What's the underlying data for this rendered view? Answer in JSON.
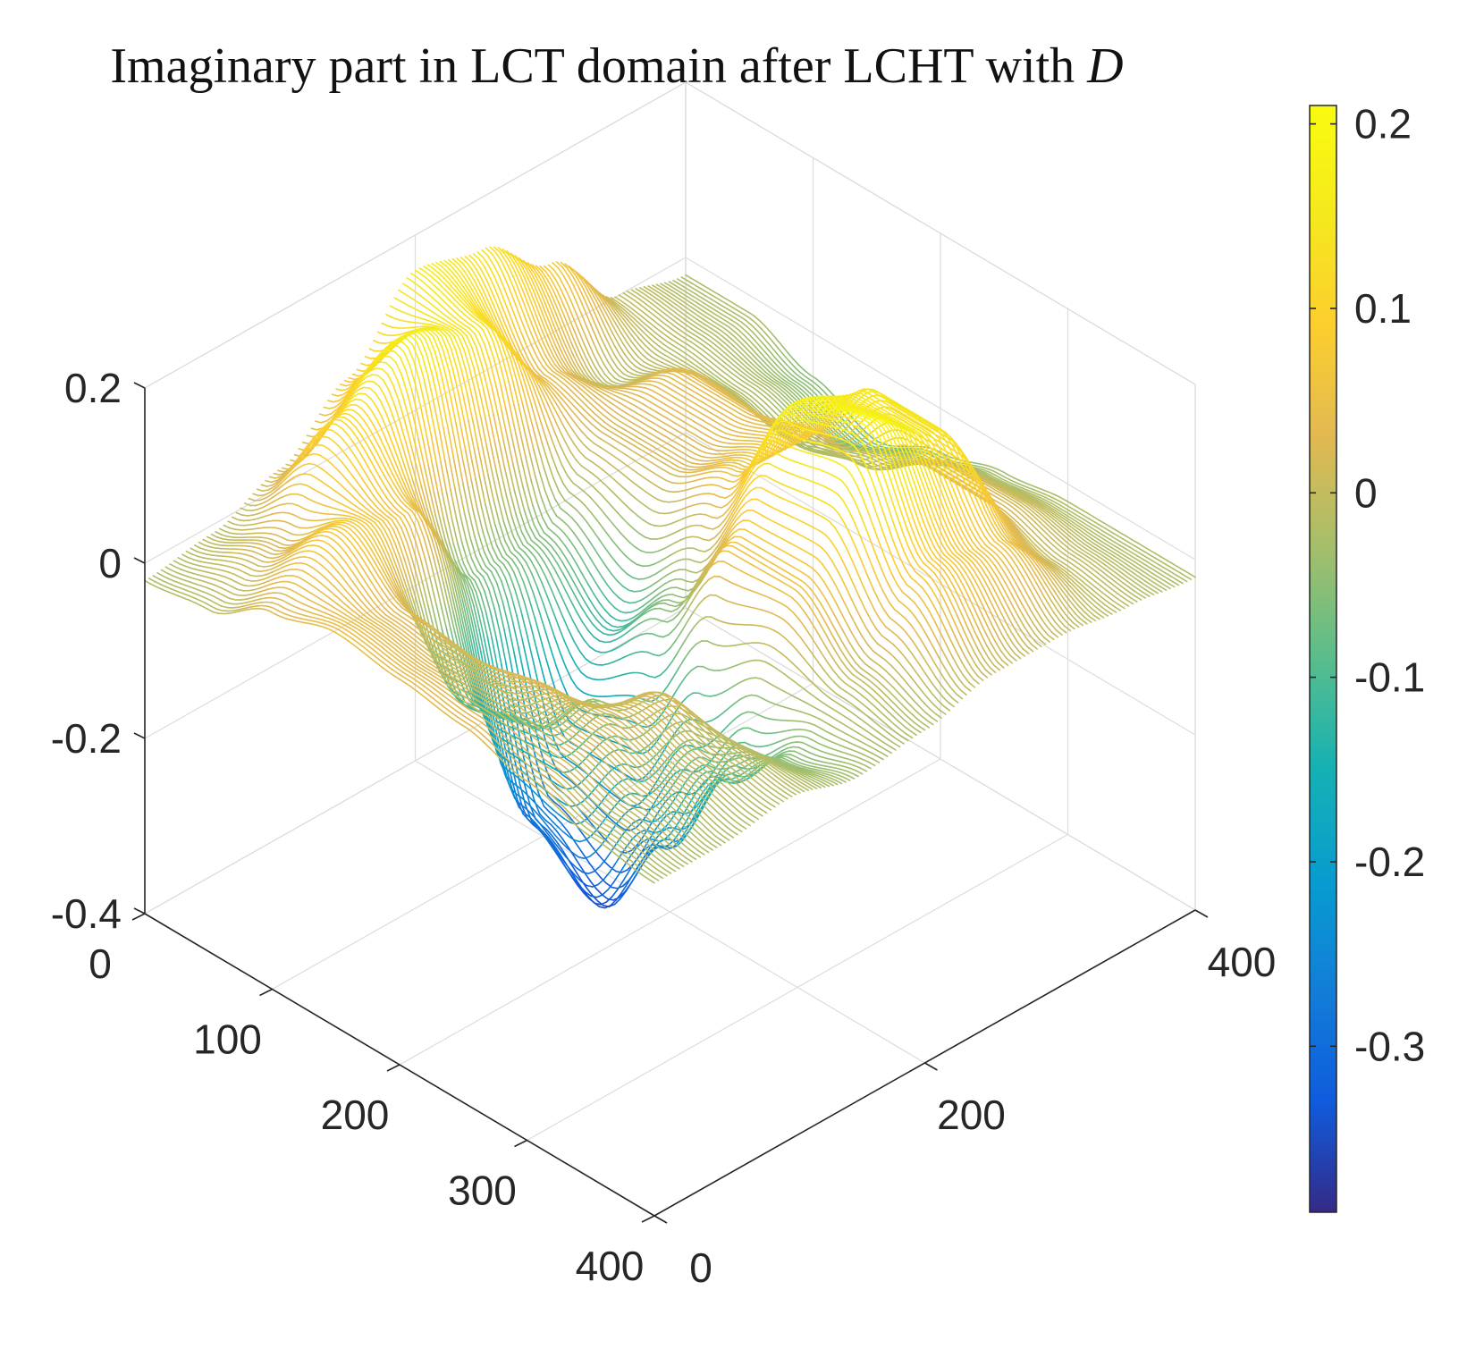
{
  "chart_data": {
    "type": "surface3d",
    "title": "Imaginary part in LCT domain after LCHT with ",
    "title_variable": "D",
    "xlabel": "",
    "ylabel": "",
    "zlabel": "",
    "x_axis": {
      "range": [
        0,
        400
      ],
      "ticks": [
        0,
        100,
        200,
        300,
        400
      ],
      "tick_labels": [
        "0",
        "100",
        "200",
        "300",
        "400"
      ]
    },
    "y_axis": {
      "range": [
        0,
        400
      ],
      "ticks": [
        0,
        200,
        400
      ],
      "tick_labels": [
        "0",
        "200",
        "400"
      ]
    },
    "z_axis": {
      "range": [
        -0.4,
        0.2
      ],
      "ticks": [
        -0.4,
        -0.2,
        0,
        0.2
      ],
      "tick_labels": [
        "-0.4",
        "-0.2",
        "0",
        "0.2"
      ]
    },
    "colorbar": {
      "colormap": "parula",
      "range": [
        -0.39,
        0.21
      ],
      "ticks": [
        -0.3,
        -0.2,
        -0.1,
        0,
        0.1,
        0.2
      ],
      "tick_labels": [
        "-0.3",
        "-0.2",
        "-0.1",
        "0",
        "0.1",
        "0.2"
      ]
    },
    "surface_sample_grid": {
      "x": [
        0,
        50,
        100,
        150,
        200,
        250,
        300,
        350,
        400
      ],
      "y": [
        0,
        50,
        100,
        150,
        200,
        250,
        300,
        350,
        400
      ],
      "z": [
        [
          -0.02,
          -0.01,
          0.02,
          0.08,
          0.16,
          0.14,
          0.08,
          0.0,
          -0.02
        ],
        [
          -0.01,
          0.02,
          0.12,
          0.17,
          0.14,
          0.04,
          -0.01,
          -0.01,
          -0.02
        ],
        [
          0.03,
          0.08,
          0.06,
          -0.06,
          -0.06,
          0.02,
          0.04,
          -0.02,
          -0.05
        ],
        [
          0.05,
          0.03,
          -0.12,
          -0.3,
          -0.12,
          0.02,
          0.04,
          -0.04,
          -0.08
        ],
        [
          0.04,
          0.02,
          -0.1,
          -0.35,
          -0.05,
          0.06,
          0.06,
          -0.02,
          -0.05
        ],
        [
          0.03,
          0.03,
          -0.03,
          -0.24,
          0.06,
          0.18,
          0.15,
          0.02,
          -0.03
        ],
        [
          0.01,
          0.02,
          0.02,
          -0.12,
          0.06,
          0.2,
          0.15,
          0.02,
          -0.02
        ],
        [
          -0.01,
          0.0,
          0.0,
          -0.05,
          0.0,
          0.08,
          0.06,
          0.0,
          -0.02
        ],
        [
          -0.02,
          -0.02,
          -0.01,
          -0.03,
          -0.02,
          0.0,
          0.0,
          -0.01,
          -0.02
        ]
      ]
    }
  }
}
